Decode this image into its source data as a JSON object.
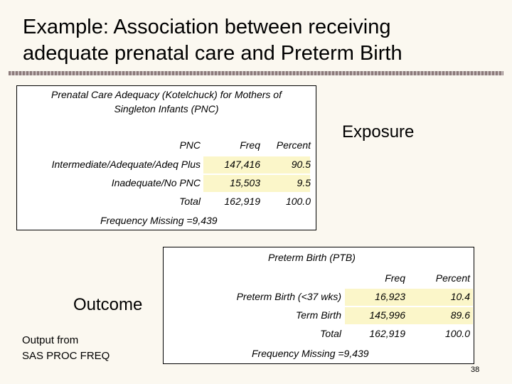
{
  "slide": {
    "title_line1": "Example: Association between receiving",
    "title_line2": "adequate prenatal care and Preterm Birth",
    "exposure_label": "Exposure",
    "outcome_label": "Outcome",
    "output_note_line1": "Output from",
    "output_note_line2": "SAS PROC FREQ",
    "page_number": "38"
  },
  "table1": {
    "title_line1": "Prenatal Care Adequacy (Kotelchuck) for Mothers of",
    "title_line2": "Singleton Infants (PNC)",
    "headers": [
      "PNC",
      "Freq",
      "Percent"
    ],
    "rows": [
      {
        "label": "Intermediate/Adequate/Adeq Plus",
        "freq": "147,416",
        "percent": "90.5"
      },
      {
        "label": "Inadequate/No PNC",
        "freq": "15,503",
        "percent": "9.5"
      },
      {
        "label": "Total",
        "freq": "162,919",
        "percent": "100.0"
      }
    ],
    "missing": "Frequency Missing =9,439",
    "highlight_color": "#fbf6c9"
  },
  "table2": {
    "title": "Preterm Birth (PTB)",
    "headers": [
      "Freq",
      "Percent"
    ],
    "rows": [
      {
        "label": "Preterm Birth (<37 wks)",
        "freq": "16,923",
        "percent": "10.4"
      },
      {
        "label": "Term Birth",
        "freq": "145,996",
        "percent": "89.6"
      },
      {
        "label": "Total",
        "freq": "162,919",
        "percent": "100.0"
      }
    ],
    "missing": "Frequency Missing =9,439"
  }
}
